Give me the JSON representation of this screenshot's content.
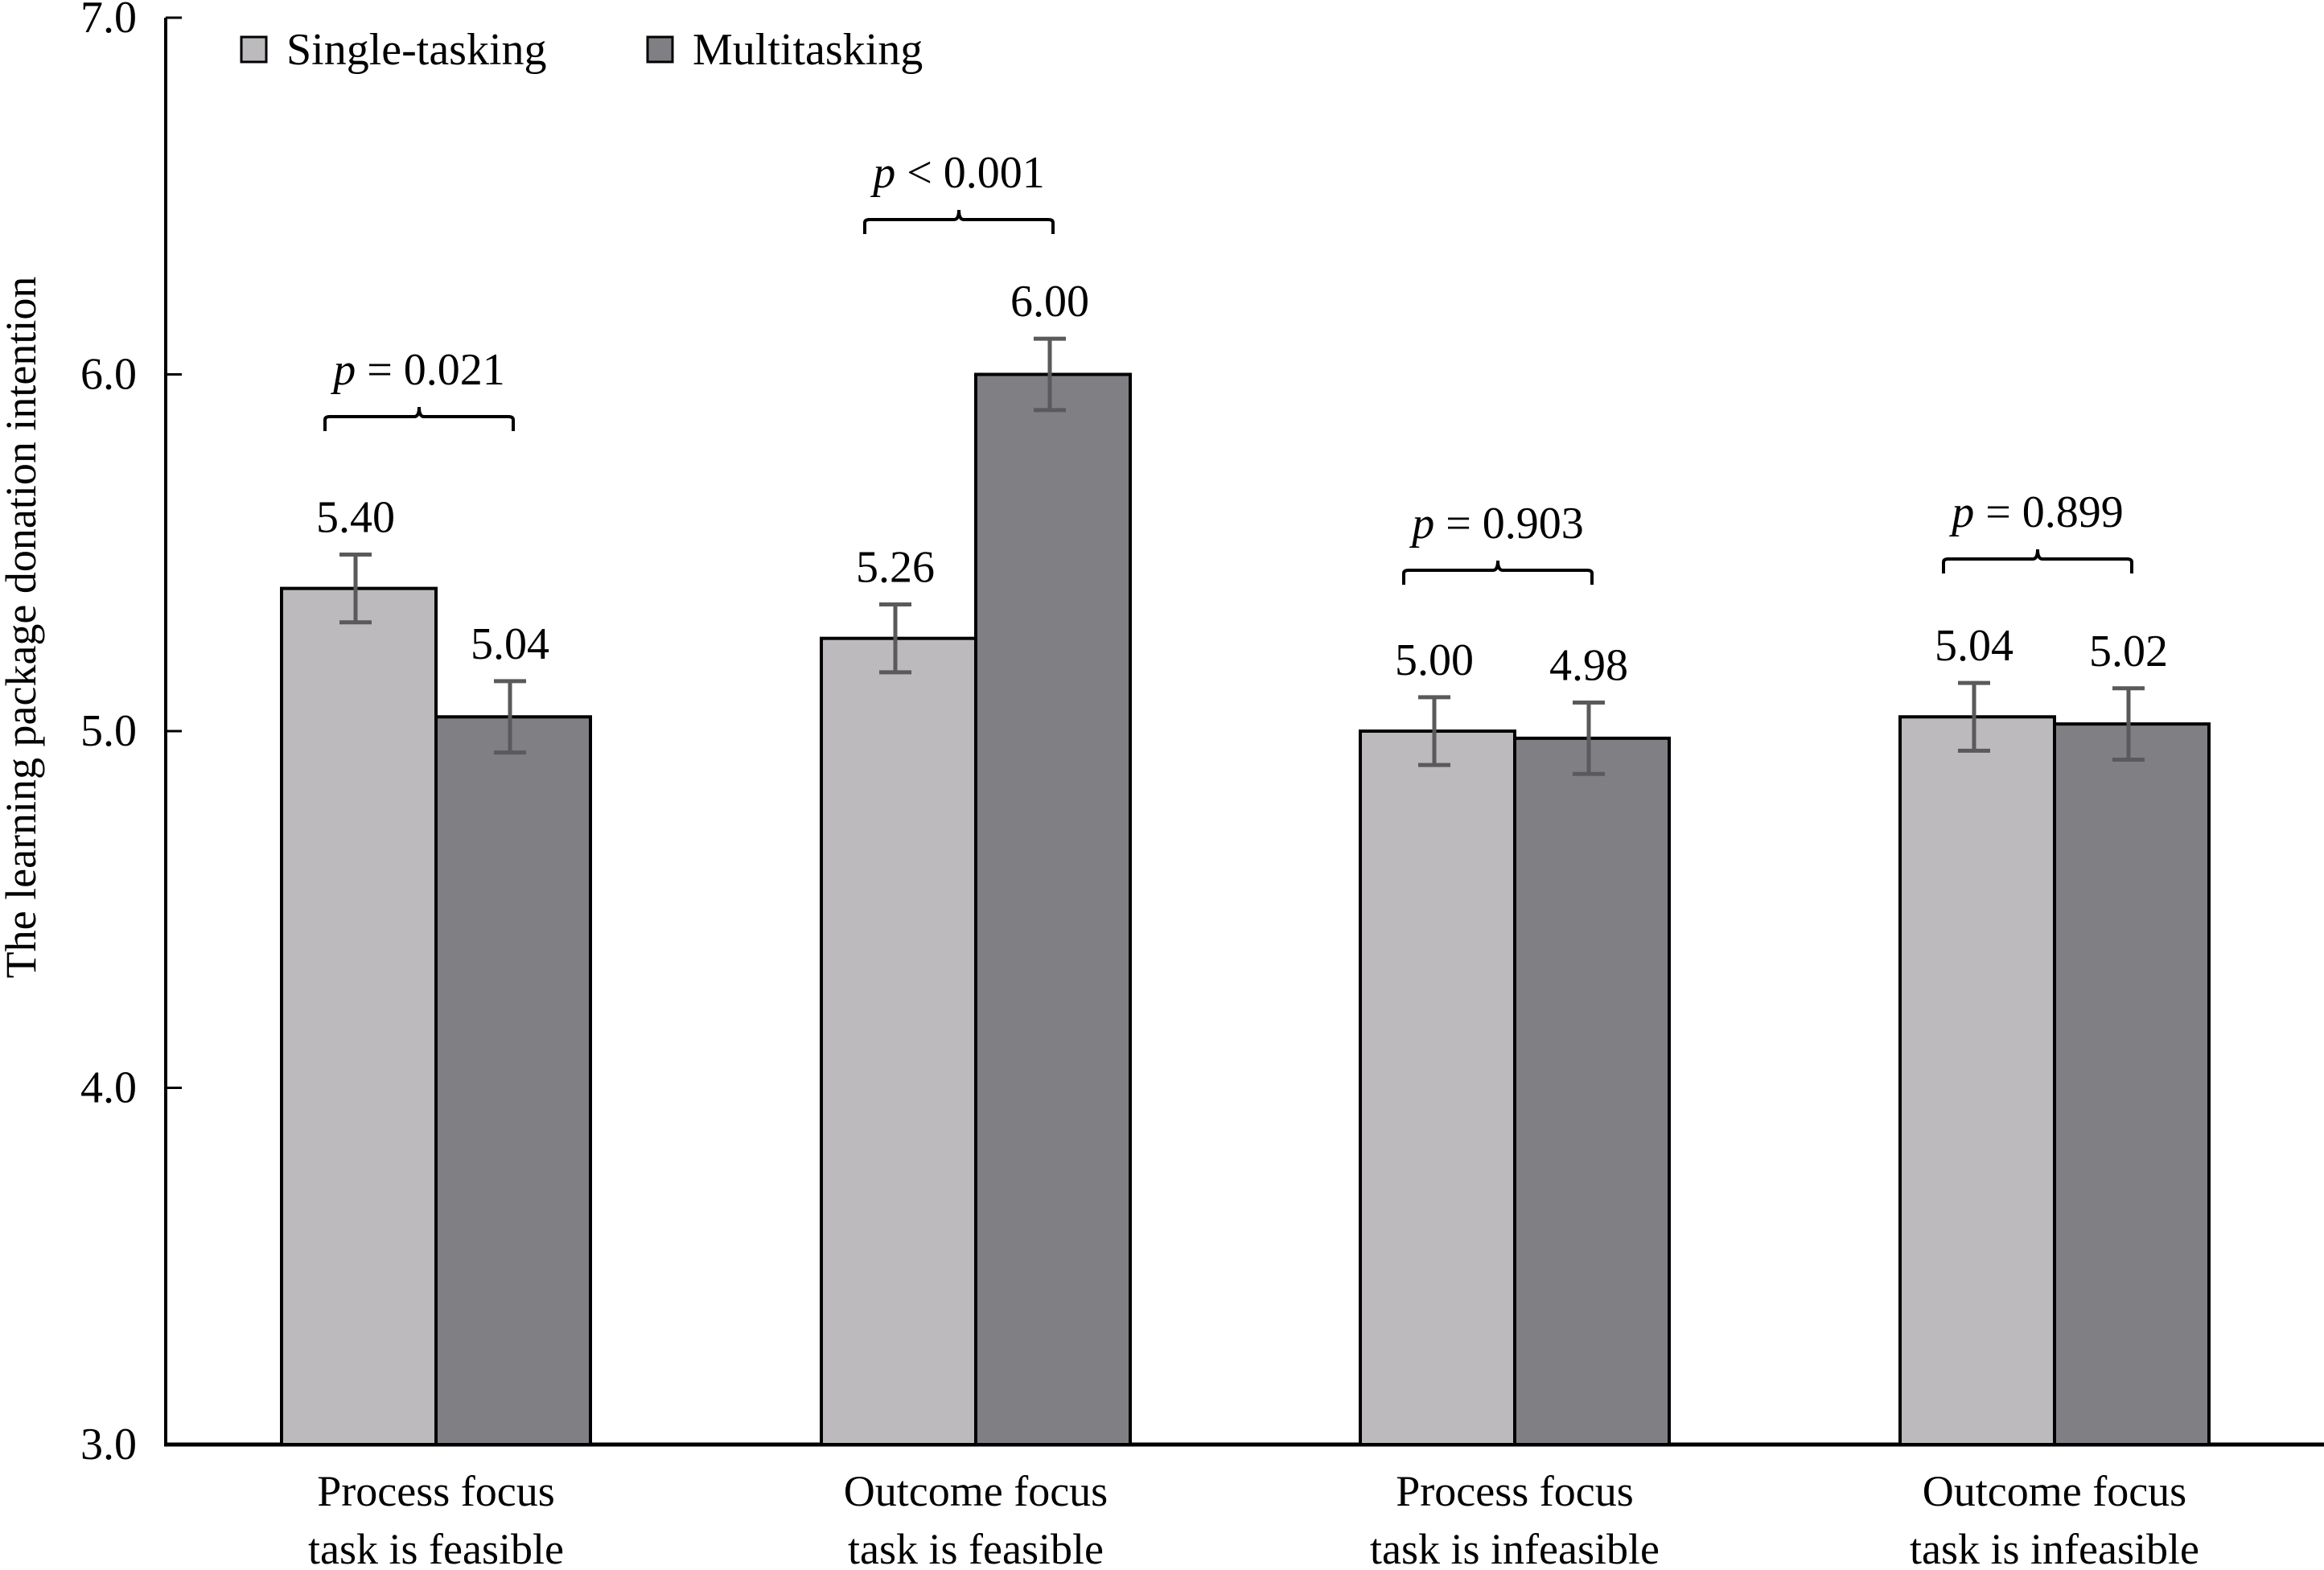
{
  "chart_data": {
    "type": "bar",
    "title": "",
    "xlabel": "",
    "ylabel": "The learning package donation intention",
    "ylim": [
      3.0,
      7.0
    ],
    "yticks": [
      "3.0",
      "4.0",
      "5.0",
      "6.0",
      "7.0"
    ],
    "grid": false,
    "legend_position": "top-left",
    "categories": [
      [
        "Process focus",
        "task is feasible"
      ],
      [
        "Outcome focus",
        "task is feasible"
      ],
      [
        "Process focus",
        "task is infeasible"
      ],
      [
        "Outcome focus",
        "task is infeasible"
      ]
    ],
    "series": [
      {
        "name": "Single-tasking",
        "color": "#bcbabd",
        "values": [
          5.4,
          5.26,
          5.0,
          5.04
        ],
        "labels": [
          "5.40",
          "5.26",
          "5.00",
          "5.04"
        ],
        "error": [
          0.095,
          0.095,
          0.095,
          0.095
        ]
      },
      {
        "name": "Multitasking",
        "color": "#807f84",
        "values": [
          5.04,
          6.0,
          4.98,
          5.02
        ],
        "labels": [
          "5.04",
          "6.00",
          "4.98",
          "5.02"
        ],
        "error": [
          0.1,
          0.1,
          0.1,
          0.1
        ]
      }
    ],
    "annotations": [
      {
        "group": 0,
        "p_symbol": "p",
        "text": " = 0.021"
      },
      {
        "group": 1,
        "p_symbol": "p",
        "text": " < 0.001"
      },
      {
        "group": 2,
        "p_symbol": "p",
        "text": " = 0.903"
      },
      {
        "group": 3,
        "p_symbol": "p",
        "text": " = 0.899"
      }
    ],
    "error_bar_color": "#5a5a5c",
    "axis_color": "#000000"
  }
}
